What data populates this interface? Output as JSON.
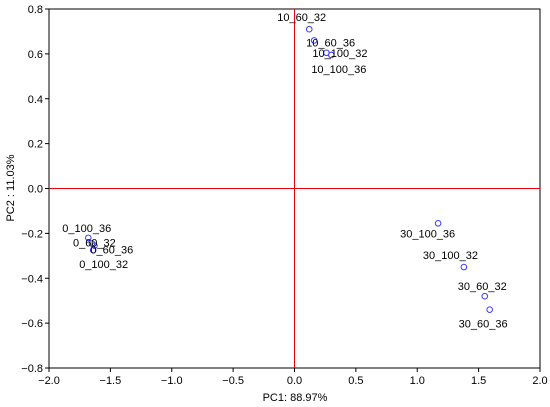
{
  "chart_data": {
    "type": "scatter",
    "title": "",
    "xlabel": "PC1: 88.97%",
    "ylabel": "PC2 : 11.03%",
    "xlim": [
      -2.0,
      2.0
    ],
    "ylim": [
      -0.8,
      0.8
    ],
    "x_ticks": [
      -2.0,
      -1.5,
      -1.0,
      -0.5,
      0.0,
      0.5,
      1.0,
      1.5,
      2.0
    ],
    "y_ticks": [
      0.8,
      0.6,
      0.4,
      0.2,
      0.0,
      -0.2,
      -0.4,
      -0.6,
      -0.8
    ],
    "x_tick_labels": [
      "−2.0",
      "−1.5",
      "−1.0",
      "−0.5",
      "0.0",
      "0.5",
      "1.0",
      "1.5",
      "2.0"
    ],
    "y_tick_labels": [
      "0.8",
      "0.6",
      "0.4",
      "0.2",
      "0.0",
      "−0.2",
      "−0.4",
      "−0.6",
      "−0.8"
    ],
    "reference_lines": {
      "x": 0.0,
      "y": 0.0,
      "color": "#e8000b"
    },
    "marker_color": "#3b3bff",
    "grid": false,
    "points": [
      {
        "label": "10_60_32",
        "x": 0.12,
        "y": 0.71
      },
      {
        "label": "10_60_36",
        "x": 0.16,
        "y": 0.66
      },
      {
        "label": "10_100_32",
        "x": 0.26,
        "y": 0.605
      },
      {
        "label": "10_100_36",
        "x": 0.3,
        "y": 0.595
      },
      {
        "label": "0_100_36",
        "x": -1.68,
        "y": -0.22
      },
      {
        "label": "0_60_32",
        "x": -1.65,
        "y": -0.245
      },
      {
        "label": "0_60_36",
        "x": -1.63,
        "y": -0.255
      },
      {
        "label": "0_100_32",
        "x": -1.64,
        "y": -0.275
      },
      {
        "label": "30_100_36",
        "x": 1.17,
        "y": -0.155
      },
      {
        "label": "30_100_32",
        "x": 1.38,
        "y": -0.35
      },
      {
        "label": "30_60_32",
        "x": 1.55,
        "y": -0.48
      },
      {
        "label": "30_60_36",
        "x": 1.59,
        "y": -0.54
      }
    ]
  }
}
